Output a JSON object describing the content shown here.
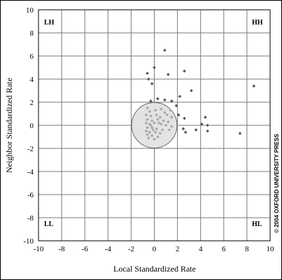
{
  "chart_data": {
    "type": "scatter",
    "xlabel": "Local Standardized Rate",
    "ylabel": "Neighbor Standardized Rate",
    "xlim": [
      -10,
      10
    ],
    "ylim": [
      -10,
      10
    ],
    "x_ticks": [
      "-10",
      "-8",
      "-6",
      "-4",
      "-2",
      "0",
      "2",
      "4",
      "6",
      "8",
      "10"
    ],
    "y_ticks": [
      "10",
      "8",
      "6",
      "4",
      "2",
      "0",
      "-2",
      "-4",
      "-6",
      "-8",
      "-10"
    ],
    "grid": true,
    "quadrant_labels": {
      "top_left": "LH",
      "top_right": "HH",
      "bottom_left": "LL",
      "bottom_right": "HL"
    },
    "reference_circle": {
      "center": [
        0,
        0
      ],
      "radius": 1.96
    },
    "copyright": "© 2004 OXFORD UNIVERSITY PRESS",
    "colors": {
      "outside_points": "#555555",
      "inside_points": "#a8a8a8",
      "circle_fill": "#e3e3e3",
      "circle_stroke": "#666666",
      "grid": "#7a7a7a"
    },
    "series": [
      {
        "points_outside": [
          [
            0.9,
            6.5
          ],
          [
            0,
            5.0
          ],
          [
            -0.6,
            4.5
          ],
          [
            2.6,
            4.7
          ],
          [
            1.2,
            4.4
          ],
          [
            -0.5,
            4.0
          ],
          [
            -0.2,
            3.6
          ],
          [
            8.6,
            3.4
          ],
          [
            3.2,
            3.0
          ],
          [
            2.2,
            2.5
          ],
          [
            0.3,
            2.3
          ],
          [
            0.9,
            2.2
          ],
          [
            -0.3,
            2.1
          ],
          [
            1.5,
            2.1
          ],
          [
            1.9,
            1.7
          ],
          [
            2.1,
            0.9
          ],
          [
            2.6,
            0.6
          ],
          [
            4.4,
            0.7
          ],
          [
            4.1,
            0.1
          ],
          [
            4.6,
            0.0
          ],
          [
            2.5,
            -0.3
          ],
          [
            3.6,
            -0.4
          ],
          [
            4.6,
            -0.5
          ],
          [
            7.4,
            -0.7
          ],
          [
            2.7,
            -0.6
          ]
        ],
        "points_inside": [
          [
            -0.6,
            1.5
          ],
          [
            -0.4,
            1.2
          ],
          [
            0.1,
            1.3
          ],
          [
            0.6,
            1.4
          ],
          [
            0.9,
            1.1
          ],
          [
            1.4,
            1.3
          ],
          [
            1.1,
            0.9
          ],
          [
            -0.7,
            0.9
          ],
          [
            -0.3,
            0.8
          ],
          [
            0.2,
            0.9
          ],
          [
            0.5,
            0.7
          ],
          [
            1.5,
            0.7
          ],
          [
            -0.6,
            0.5
          ],
          [
            -0.2,
            0.4
          ],
          [
            0.3,
            0.5
          ],
          [
            0.8,
            0.4
          ],
          [
            1.2,
            0.3
          ],
          [
            -0.7,
            0.2
          ],
          [
            -0.4,
            0.1
          ],
          [
            0.0,
            0.2
          ],
          [
            0.6,
            0.1
          ],
          [
            1.0,
            0.0
          ],
          [
            1.5,
            -0.1
          ],
          [
            -0.6,
            -0.2
          ],
          [
            -0.2,
            -0.2
          ],
          [
            0.2,
            -0.3
          ],
          [
            0.7,
            -0.4
          ],
          [
            1.3,
            -0.4
          ],
          [
            -0.7,
            -0.5
          ],
          [
            -0.4,
            -0.6
          ],
          [
            0.1,
            -0.6
          ],
          [
            0.5,
            -0.7
          ],
          [
            -0.6,
            -0.8
          ],
          [
            -0.2,
            -0.9
          ],
          [
            0.3,
            -1.0
          ],
          [
            -0.5,
            -1.1
          ],
          [
            0.0,
            -1.2
          ],
          [
            -0.3,
            0.0
          ],
          [
            -0.1,
            -0.4
          ],
          [
            0.4,
            0.2
          ]
        ]
      }
    ]
  }
}
